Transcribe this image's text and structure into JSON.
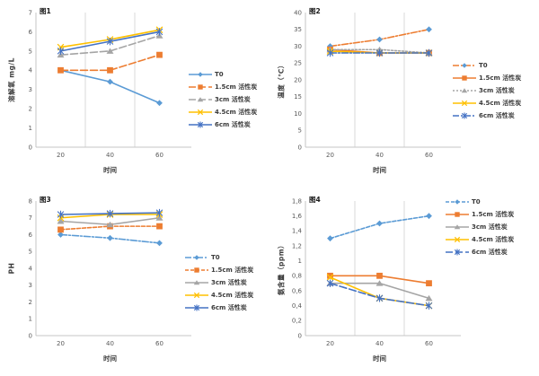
{
  "colors": {
    "axis": "#C6C6C6",
    "gridline": "#D9D9D9",
    "tick_text": "#595959",
    "label_text": "#3B3B3B"
  },
  "chart_data": [
    {
      "type": "line",
      "title": "图1",
      "xlabel": "时间",
      "ylabel": "溶解氧 mg/L",
      "x": [
        "20",
        "40",
        "60"
      ],
      "ylim": [
        0,
        7
      ],
      "yticks": [
        0,
        1,
        2,
        3,
        4,
        5,
        6,
        7
      ],
      "ytick_labels": [
        "0",
        "1",
        "2",
        "3",
        "4",
        "5",
        "6",
        "7"
      ],
      "vertical_gridlines": true,
      "legend_position": "right",
      "series": [
        {
          "name": "T0",
          "values": [
            4.0,
            3.4,
            2.3
          ],
          "color": "#5B9BD5",
          "marker_color": "#5B9BD5",
          "dash": "solid",
          "marker": "diamond"
        },
        {
          "name": "1.5cm 活性炭",
          "values": [
            4.0,
            4.0,
            4.8
          ],
          "color": "#ED7D31",
          "marker_color": "#ED7D31",
          "dash": "dash",
          "marker": "square"
        },
        {
          "name": "3cm 活性炭",
          "values": [
            4.8,
            5.0,
            5.8
          ],
          "color": "#A5A5A5",
          "marker_color": "#A5A5A5",
          "dash": "dash",
          "marker": "triangle"
        },
        {
          "name": "4.5cm 活性炭",
          "values": [
            5.2,
            5.6,
            6.1
          ],
          "color": "#FFC000",
          "marker_color": "#FFC000",
          "dash": "solid",
          "marker": "x"
        },
        {
          "name": "6cm 活性炭",
          "values": [
            5.0,
            5.5,
            6.0
          ],
          "color": "#4472C4",
          "marker_color": "#4472C4",
          "dash": "solid",
          "marker": "asterisk"
        }
      ]
    },
    {
      "type": "line",
      "title": "图2",
      "xlabel": "时间",
      "ylabel": "温度（℃）",
      "x": [
        "20",
        "40",
        "60"
      ],
      "ylim": [
        0,
        40
      ],
      "yticks": [
        0,
        5,
        10,
        15,
        20,
        25,
        30,
        35,
        40
      ],
      "ytick_labels": [
        "0",
        "5",
        "10",
        "15",
        "20",
        "25",
        "30",
        "35",
        "40"
      ],
      "vertical_gridlines": true,
      "legend_position": "right",
      "series": [
        {
          "name": "T0",
          "values": [
            30,
            32,
            35
          ],
          "color": "#ED7D31",
          "marker_color": "#5B9BD5",
          "dash": "dashdot",
          "marker": "diamond"
        },
        {
          "name": "1.5cm 活性炭",
          "values": [
            29,
            28,
            28
          ],
          "color": "#ED7D31",
          "marker_color": "#ED7D31",
          "dash": "solid",
          "marker": "square"
        },
        {
          "name": "3cm 活性炭",
          "values": [
            29,
            29,
            28
          ],
          "color": "#A5A5A5",
          "marker_color": "#A5A5A5",
          "dash": "dot",
          "marker": "triangle"
        },
        {
          "name": "4.5cm 活性炭",
          "values": [
            28.5,
            28,
            28
          ],
          "color": "#FFC000",
          "marker_color": "#FFC000",
          "dash": "solid",
          "marker": "x"
        },
        {
          "name": "6cm 活性炭",
          "values": [
            28,
            28,
            28
          ],
          "color": "#4472C4",
          "marker_color": "#4472C4",
          "dash": "dashdot",
          "marker": "asterisk"
        }
      ]
    },
    {
      "type": "line",
      "title": "图3",
      "xlabel": "时间",
      "ylabel": "PH",
      "x": [
        "20",
        "40",
        "60"
      ],
      "ylim": [
        0,
        8
      ],
      "yticks": [
        0,
        1,
        2,
        3,
        4,
        5,
        6,
        7,
        8
      ],
      "ytick_labels": [
        "0",
        "1",
        "2",
        "3",
        "4",
        "5",
        "6",
        "7",
        "8"
      ],
      "vertical_gridlines": false,
      "legend_position": "right",
      "series": [
        {
          "name": "T0",
          "values": [
            6.0,
            5.8,
            5.5
          ],
          "color": "#5B9BD5",
          "marker_color": "#5B9BD5",
          "dash": "dashdot",
          "marker": "diamond"
        },
        {
          "name": "1.5cm 活性炭",
          "values": [
            6.3,
            6.5,
            6.5
          ],
          "color": "#ED7D31",
          "marker_color": "#ED7D31",
          "dash": "shortdash",
          "marker": "square"
        },
        {
          "name": "3cm 活性炭",
          "values": [
            6.8,
            6.6,
            7.0
          ],
          "color": "#A5A5A5",
          "marker_color": "#A5A5A5",
          "dash": "solid",
          "marker": "triangle"
        },
        {
          "name": "4.5cm 活性炭",
          "values": [
            7.0,
            7.2,
            7.2
          ],
          "color": "#FFC000",
          "marker_color": "#FFC000",
          "dash": "solid",
          "marker": "x"
        },
        {
          "name": "6cm 活性炭",
          "values": [
            7.2,
            7.25,
            7.3
          ],
          "color": "#4472C4",
          "marker_color": "#4472C4",
          "dash": "solid",
          "marker": "asterisk"
        }
      ]
    },
    {
      "type": "line",
      "title": "图4",
      "xlabel": "时间",
      "ylabel": "氨含量（ppm）",
      "x": [
        "20",
        "40",
        "60"
      ],
      "ylim": [
        0,
        1.8
      ],
      "yticks": [
        0,
        0.2,
        0.4,
        0.6,
        0.8,
        1,
        1.2,
        1.4,
        1.6,
        1.8
      ],
      "ytick_labels": [
        "0",
        "0,2",
        "0,4",
        "0,6",
        "0,8",
        "1",
        "1,2",
        "1,4",
        "1,6",
        "1,8"
      ],
      "vertical_gridlines": true,
      "legend_position": "right",
      "series": [
        {
          "name": "T0",
          "values": [
            1.3,
            1.5,
            1.6
          ],
          "color": "#5B9BD5",
          "marker_color": "#5B9BD5",
          "dash": "shortdash",
          "marker": "diamond"
        },
        {
          "name": "1.5cm 活性炭",
          "values": [
            0.8,
            0.8,
            0.7
          ],
          "color": "#ED7D31",
          "marker_color": "#ED7D31",
          "dash": "solid",
          "marker": "square"
        },
        {
          "name": "3cm 活性炭",
          "values": [
            0.7,
            0.7,
            0.5
          ],
          "color": "#A5A5A5",
          "marker_color": "#A5A5A5",
          "dash": "solid",
          "marker": "triangle"
        },
        {
          "name": "4.5cm 活性炭",
          "values": [
            0.78,
            0.5,
            0.4
          ],
          "color": "#FFC000",
          "marker_color": "#FFC000",
          "dash": "solid",
          "marker": "x"
        },
        {
          "name": "6cm 活性炭",
          "values": [
            0.7,
            0.5,
            0.4
          ],
          "color": "#4472C4",
          "marker_color": "#4472C4",
          "dash": "dash",
          "marker": "asterisk"
        }
      ]
    }
  ]
}
